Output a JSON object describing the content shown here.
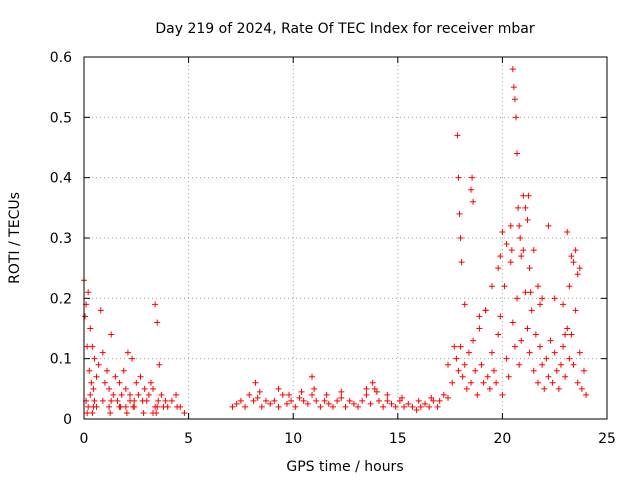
{
  "chart_data": {
    "type": "scatter",
    "title": "Day 219 of 2024, Rate Of TEC Index for receiver mbar",
    "xlabel": "GPS time / hours",
    "ylabel": "ROTI / TECUs",
    "xlim": [
      0,
      25
    ],
    "ylim": [
      0,
      0.6
    ],
    "xticks": [
      0,
      5,
      10,
      15,
      20,
      25
    ],
    "yticks": [
      0,
      0.1,
      0.2,
      0.3,
      0.4,
      0.5,
      0.6
    ],
    "xtick_labels": [
      "0",
      "5",
      "10",
      "15",
      "20",
      "25"
    ],
    "ytick_labels": [
      "0",
      "0.1",
      "0.2",
      "0.3",
      "0.4",
      "0.5",
      "0.6"
    ],
    "grid": true,
    "marker": "+",
    "color": "#ff0000",
    "series": [
      {
        "x": [
          0.0,
          0.05,
          0.1,
          0.15,
          0.2,
          0.25,
          0.3,
          0.35,
          0.4,
          0.45,
          0.5,
          0.6,
          0.7,
          0.8,
          0.9,
          1.0,
          1.1,
          1.2,
          1.3,
          1.4,
          1.5,
          1.6,
          1.7,
          1.8,
          1.9,
          2.0,
          2.1,
          2.2,
          2.3,
          2.4,
          2.5,
          2.6,
          2.7,
          2.8,
          2.9,
          3.0,
          3.1,
          3.2,
          3.3,
          3.4,
          3.5,
          3.6,
          3.7,
          3.8,
          3.9,
          4.0,
          4.2,
          4.4,
          4.6,
          4.8,
          0.1,
          0.2,
          0.3,
          0.5,
          0.6,
          0.9,
          1.2,
          1.3,
          1.7,
          2.0,
          2.2,
          2.4,
          3.3,
          3.4,
          3.5,
          3.55,
          0.15,
          0.4,
          0.45,
          1.25,
          1.75,
          2.05,
          2.35,
          2.85,
          3.45,
          4.45,
          7.1,
          7.3,
          7.5,
          7.7,
          7.9,
          8.1,
          8.3,
          8.5,
          8.7,
          8.9,
          9.1,
          9.3,
          9.5,
          9.7,
          9.9,
          10.1,
          10.3,
          10.5,
          10.7,
          10.9,
          11.1,
          11.3,
          11.5,
          11.7,
          11.9,
          12.1,
          12.3,
          12.5,
          12.7,
          12.9,
          13.1,
          13.3,
          13.5,
          13.7,
          13.9,
          14.1,
          14.3,
          14.5,
          14.7,
          14.9,
          15.1,
          15.3,
          15.5,
          15.7,
          15.9,
          16.1,
          16.3,
          16.5,
          16.7,
          16.9,
          8.2,
          8.4,
          9.3,
          9.8,
          10.4,
          10.9,
          11.0,
          11.6,
          12.3,
          13.5,
          13.8,
          14.0,
          14.5,
          15.2,
          16.0,
          16.6,
          17.0,
          17.2,
          17.4,
          17.6,
          17.8,
          17.9,
          18.0,
          18.1,
          18.2,
          18.3,
          18.4,
          18.5,
          18.6,
          18.7,
          18.8,
          18.9,
          19.0,
          19.1,
          19.2,
          19.3,
          19.4,
          19.5,
          19.6,
          19.7,
          19.8,
          19.9,
          20.0,
          20.1,
          20.2,
          20.3,
          20.4,
          20.5,
          20.6,
          20.7,
          20.8,
          20.9,
          21.0,
          21.1,
          21.2,
          21.3,
          21.4,
          21.5,
          21.6,
          21.7,
          21.8,
          21.9,
          22.0,
          22.1,
          22.2,
          22.3,
          22.4,
          22.5,
          22.6,
          22.7,
          22.8,
          22.9,
          23.0,
          23.1,
          23.2,
          23.3,
          23.4,
          23.5,
          23.6,
          23.7,
          23.8,
          23.9,
          24.0,
          17.85,
          17.9,
          17.95,
          18.0,
          18.05,
          18.5,
          18.55,
          18.6,
          20.4,
          20.45,
          20.5,
          20.55,
          20.6,
          20.65,
          20.7,
          20.75,
          20.8,
          20.85,
          20.9,
          21.0,
          21.1,
          21.2,
          21.25,
          21.3,
          21.35,
          21.5,
          21.7,
          21.9,
          22.2,
          22.5,
          23.1,
          23.3,
          23.4,
          23.5,
          23.6,
          23.2,
          23.7,
          22.9,
          23.0,
          21.8,
          20.0,
          20.2,
          19.9,
          19.8,
          19.5,
          19.2,
          18.9,
          18.2,
          17.7,
          17.4
        ],
        "y": [
          0.23,
          0.17,
          0.19,
          0.12,
          0.21,
          0.08,
          0.15,
          0.06,
          0.12,
          0.05,
          0.1,
          0.07,
          0.09,
          0.18,
          0.11,
          0.06,
          0.08,
          0.05,
          0.14,
          0.04,
          0.07,
          0.03,
          0.06,
          0.04,
          0.08,
          0.05,
          0.11,
          0.04,
          0.1,
          0.03,
          0.06,
          0.04,
          0.07,
          0.03,
          0.05,
          0.03,
          0.04,
          0.06,
          0.05,
          0.19,
          0.16,
          0.09,
          0.04,
          0.02,
          0.03,
          0.02,
          0.03,
          0.04,
          0.02,
          0.01,
          0.03,
          0.02,
          0.04,
          0.03,
          0.02,
          0.03,
          0.02,
          0.03,
          0.02,
          0.02,
          0.03,
          0.02,
          0.01,
          0.02,
          0.02,
          0.03,
          0.01,
          0.01,
          0.02,
          0.01,
          0.02,
          0.01,
          0.02,
          0.01,
          0.01,
          0.02,
          0.02,
          0.025,
          0.03,
          0.02,
          0.04,
          0.03,
          0.035,
          0.02,
          0.03,
          0.025,
          0.03,
          0.02,
          0.04,
          0.025,
          0.03,
          0.02,
          0.035,
          0.03,
          0.025,
          0.04,
          0.03,
          0.02,
          0.03,
          0.025,
          0.02,
          0.03,
          0.035,
          0.02,
          0.03,
          0.025,
          0.02,
          0.03,
          0.04,
          0.025,
          0.05,
          0.03,
          0.02,
          0.03,
          0.025,
          0.02,
          0.03,
          0.02,
          0.025,
          0.02,
          0.015,
          0.02,
          0.025,
          0.02,
          0.03,
          0.02,
          0.06,
          0.045,
          0.05,
          0.04,
          0.045,
          0.07,
          0.05,
          0.04,
          0.045,
          0.05,
          0.06,
          0.045,
          0.04,
          0.035,
          0.03,
          0.035,
          0.03,
          0.04,
          0.035,
          0.06,
          0.1,
          0.08,
          0.12,
          0.07,
          0.09,
          0.05,
          0.11,
          0.06,
          0.13,
          0.08,
          0.04,
          0.15,
          0.09,
          0.06,
          0.18,
          0.07,
          0.05,
          0.11,
          0.08,
          0.06,
          0.14,
          0.17,
          0.04,
          0.22,
          0.1,
          0.07,
          0.26,
          0.16,
          0.12,
          0.2,
          0.09,
          0.13,
          0.28,
          0.21,
          0.15,
          0.11,
          0.18,
          0.08,
          0.14,
          0.06,
          0.12,
          0.09,
          0.05,
          0.1,
          0.07,
          0.13,
          0.06,
          0.11,
          0.08,
          0.05,
          0.09,
          0.12,
          0.07,
          0.15,
          0.1,
          0.14,
          0.09,
          0.18,
          0.06,
          0.11,
          0.05,
          0.08,
          0.04,
          0.47,
          0.4,
          0.34,
          0.3,
          0.26,
          0.38,
          0.4,
          0.36,
          0.32,
          0.28,
          0.58,
          0.55,
          0.53,
          0.5,
          0.44,
          0.35,
          0.32,
          0.3,
          0.27,
          0.37,
          0.35,
          0.33,
          0.37,
          0.25,
          0.21,
          0.28,
          0.22,
          0.2,
          0.32,
          0.2,
          0.31,
          0.27,
          0.26,
          0.28,
          0.24,
          0.22,
          0.25,
          0.19,
          0.14,
          0.19,
          0.31,
          0.29,
          0.27,
          0.25,
          0.22,
          0.18,
          0.17,
          0.19,
          0.12,
          0.09
        ]
      }
    ]
  }
}
